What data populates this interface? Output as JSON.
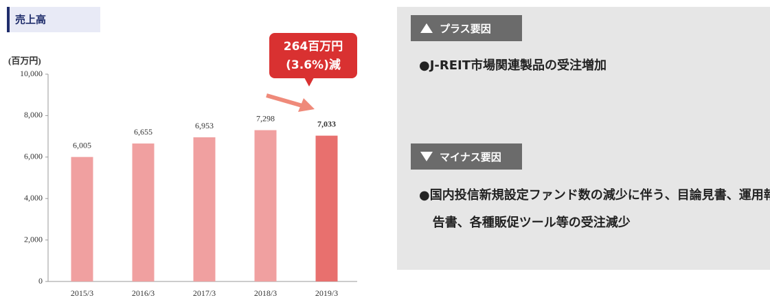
{
  "chart_data": {
    "type": "bar",
    "title": "売上高",
    "y_label": "(百万円)",
    "categories": [
      "2015/3",
      "2016/3",
      "2017/3",
      "2018/3",
      "2019/3"
    ],
    "values": [
      6005,
      6655,
      6953,
      7298,
      7033
    ],
    "value_labels": [
      "6,005",
      "6,655",
      "6,953",
      "7,298",
      "7,033"
    ],
    "colors": [
      "#f0a0a0",
      "#f0a0a0",
      "#f0a0a0",
      "#f0a0a0",
      "#e8706e"
    ],
    "ylim": [
      0,
      10000
    ],
    "yticks": [
      0,
      {
        "value": 2000,
        "label": "2,000"
      },
      {
        "value": 4000,
        "label": "4,000"
      },
      {
        "value": 6000,
        "label": "6,000"
      },
      {
        "value": 8000,
        "label": "8,000"
      },
      {
        "value": 10000,
        "label": "10,000"
      }
    ],
    "annotation": [
      "264百万円",
      "(3.6%)減"
    ]
  },
  "panel": {
    "plus": {
      "heading": "プラス要因",
      "items": [
        "●J-REIT市場関連製品の受注増加"
      ]
    },
    "minus": {
      "heading": "マイナス要因",
      "items": [
        "●国内投信新規設定ファンド数の減少に伴う、目論見書、運用報告書、各種販促ツール等の受注減少"
      ]
    }
  }
}
